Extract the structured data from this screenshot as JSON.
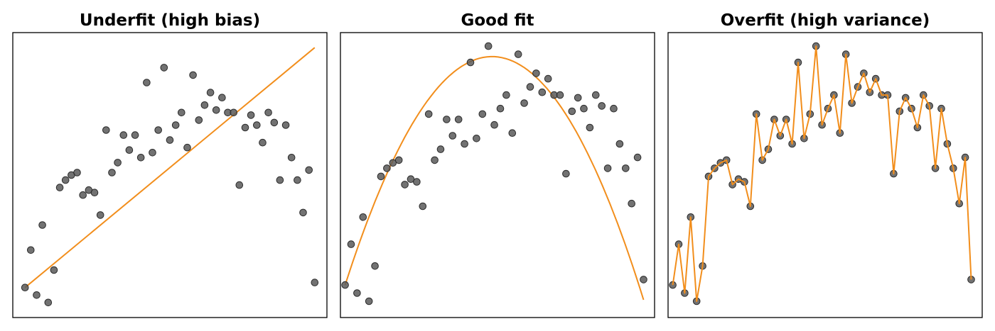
{
  "chart_data": [
    {
      "type": "scatter",
      "title": "Underfit (high bias)",
      "fit": "linear",
      "x": [
        0.0,
        0.019,
        0.038,
        0.057,
        0.076,
        0.095,
        0.114,
        0.133,
        0.152,
        0.171,
        0.19,
        0.209,
        0.228,
        0.247,
        0.266,
        0.285,
        0.304,
        0.323,
        0.342,
        0.361,
        0.38,
        0.399,
        0.418,
        0.437,
        0.456,
        0.475,
        0.494,
        0.513,
        0.532,
        0.551,
        0.57,
        0.589,
        0.608,
        0.627,
        0.646,
        0.665,
        0.684,
        0.703,
        0.722,
        0.741,
        0.76,
        0.779,
        0.798,
        0.817,
        0.836,
        0.855,
        0.874,
        0.893,
        0.912,
        0.931,
        0.95
      ],
      "y": [
        0.12,
        0.27,
        0.09,
        0.37,
        0.06,
        0.19,
        0.52,
        0.55,
        0.57,
        0.58,
        0.49,
        0.51,
        0.5,
        0.41,
        0.75,
        0.58,
        0.62,
        0.73,
        0.67,
        0.73,
        0.64,
        0.94,
        0.66,
        0.75,
        1.0,
        0.71,
        0.77,
        0.82,
        0.68,
        0.97,
        0.79,
        0.85,
        0.9,
        0.83,
        0.88,
        0.82,
        0.82,
        0.53,
        0.76,
        0.81,
        0.77,
        0.7,
        0.82,
        0.78,
        0.55,
        0.77,
        0.64,
        0.55,
        0.42,
        0.59,
        0.14
      ],
      "line": [
        [
          0.0,
          0.12
        ],
        [
          0.95,
          1.08
        ]
      ],
      "xlim": [
        -0.04,
        0.99
      ],
      "ylim": [
        0.0,
        1.14
      ],
      "colors": {
        "points": "#595959",
        "line": "#f28e1c"
      }
    },
    {
      "type": "scatter",
      "title": "Good fit",
      "fit": "quadratic",
      "x": [
        0.0,
        0.019,
        0.038,
        0.057,
        0.076,
        0.095,
        0.114,
        0.133,
        0.152,
        0.171,
        0.19,
        0.209,
        0.228,
        0.247,
        0.266,
        0.285,
        0.304,
        0.323,
        0.342,
        0.361,
        0.38,
        0.399,
        0.418,
        0.437,
        0.456,
        0.475,
        0.494,
        0.513,
        0.532,
        0.551,
        0.57,
        0.589,
        0.608,
        0.627,
        0.646,
        0.665,
        0.684,
        0.703,
        0.722,
        0.741,
        0.76,
        0.779,
        0.798,
        0.817,
        0.836,
        0.855,
        0.874,
        0.893,
        0.912,
        0.931,
        0.95
      ],
      "y": [
        0.12,
        0.27,
        0.09,
        0.37,
        0.06,
        0.19,
        0.52,
        0.55,
        0.57,
        0.58,
        0.49,
        0.51,
        0.5,
        0.41,
        0.75,
        0.58,
        0.62,
        0.73,
        0.67,
        0.73,
        0.64,
        0.94,
        0.66,
        0.75,
        1.0,
        0.71,
        0.77,
        0.82,
        0.68,
        0.97,
        0.79,
        0.85,
        0.9,
        0.83,
        0.88,
        0.82,
        0.82,
        0.53,
        0.76,
        0.81,
        0.77,
        0.7,
        0.82,
        0.78,
        0.55,
        0.77,
        0.64,
        0.55,
        0.42,
        0.59,
        0.14
      ],
      "curve": {
        "a": -3.85,
        "b": 3.6,
        "c": 0.12
      },
      "xlim": [
        -0.015,
        0.985
      ],
      "ylim": [
        0.0,
        1.05
      ],
      "colors": {
        "points": "#595959",
        "line": "#f28e1c"
      }
    },
    {
      "type": "scatter",
      "title": "Overfit (high variance)",
      "fit": "interpolating",
      "x": [
        0.0,
        0.019,
        0.038,
        0.057,
        0.076,
        0.095,
        0.114,
        0.133,
        0.152,
        0.171,
        0.19,
        0.209,
        0.228,
        0.247,
        0.266,
        0.285,
        0.304,
        0.323,
        0.342,
        0.361,
        0.38,
        0.399,
        0.418,
        0.437,
        0.456,
        0.475,
        0.494,
        0.513,
        0.532,
        0.551,
        0.57,
        0.589,
        0.608,
        0.627,
        0.646,
        0.665,
        0.684,
        0.703,
        0.722,
        0.741,
        0.76,
        0.779,
        0.798,
        0.817,
        0.836,
        0.855,
        0.874,
        0.893,
        0.912,
        0.931,
        0.95
      ],
      "y": [
        0.12,
        0.27,
        0.09,
        0.37,
        0.06,
        0.19,
        0.52,
        0.55,
        0.57,
        0.58,
        0.49,
        0.51,
        0.5,
        0.41,
        0.75,
        0.58,
        0.62,
        0.73,
        0.67,
        0.73,
        0.64,
        0.94,
        0.66,
        0.75,
        1.0,
        0.71,
        0.77,
        0.82,
        0.68,
        0.97,
        0.79,
        0.85,
        0.9,
        0.83,
        0.88,
        0.82,
        0.82,
        0.53,
        0.76,
        0.81,
        0.77,
        0.7,
        0.82,
        0.78,
        0.55,
        0.77,
        0.64,
        0.55,
        0.42,
        0.59,
        0.14
      ],
      "xlim": [
        -0.015,
        0.985
      ],
      "ylim": [
        0.0,
        1.05
      ],
      "colors": {
        "points": "#595959",
        "line": "#f28e1c"
      }
    }
  ]
}
